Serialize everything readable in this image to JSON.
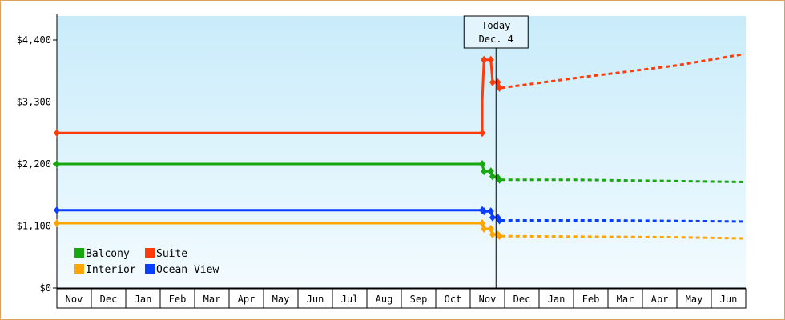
{
  "chart_data": {
    "type": "line",
    "title": "",
    "xlabel": "",
    "ylabel": "",
    "y_ticks": [
      "$0",
      "$1,100",
      "$2,200",
      "$3,300",
      "$4,400"
    ],
    "ylim": [
      0,
      4400
    ],
    "x_tick_labels": [
      "Nov",
      "Dec",
      "Jan",
      "Feb",
      "Mar",
      "Apr",
      "May",
      "Jun",
      "Jul",
      "Aug",
      "Sep",
      "Oct",
      "Nov",
      "Dec",
      "Jan",
      "Feb",
      "Mar",
      "Apr",
      "May",
      "Jun"
    ],
    "today_marker": {
      "label_line1": "Today",
      "label_line2": "Dec. 4",
      "x": 12.75
    },
    "legend": {
      "placement": "bottom-left",
      "entries": [
        {
          "label": "Balcony",
          "color": "#17a80f"
        },
        {
          "label": "Suite",
          "color": "#ff3b0a"
        },
        {
          "label": "Interior",
          "color": "#ffa500"
        },
        {
          "label": "Ocean View",
          "color": "#0a3dff"
        }
      ]
    },
    "background_gradient": [
      "#c9ecfa",
      "#f3fbff"
    ],
    "series": [
      {
        "name": "Suite",
        "color": "#ff3b0a",
        "history": [
          [
            0,
            2750
          ],
          [
            12.35,
            2750
          ],
          [
            12.35,
            3300
          ],
          [
            12.4,
            4050
          ],
          [
            12.6,
            4050
          ],
          [
            12.65,
            3650
          ],
          [
            12.8,
            3650
          ],
          [
            12.85,
            3550
          ]
        ],
        "markers": [
          [
            0,
            2750
          ],
          [
            12.35,
            2750
          ],
          [
            12.4,
            4050
          ],
          [
            12.6,
            4050
          ],
          [
            12.65,
            3650
          ],
          [
            12.8,
            3650
          ],
          [
            12.85,
            3550
          ]
        ],
        "forecast": [
          [
            12.9,
            3550
          ],
          [
            15,
            3720
          ],
          [
            18,
            3950
          ],
          [
            19.95,
            4150
          ]
        ]
      },
      {
        "name": "Balcony",
        "color": "#17a80f",
        "history": [
          [
            0,
            2200
          ],
          [
            12.35,
            2200
          ],
          [
            12.4,
            2070
          ],
          [
            12.6,
            2070
          ],
          [
            12.65,
            1980
          ],
          [
            12.8,
            1960
          ],
          [
            12.85,
            1920
          ]
        ],
        "markers": [
          [
            0,
            2200
          ],
          [
            12.35,
            2200
          ],
          [
            12.4,
            2070
          ],
          [
            12.6,
            2070
          ],
          [
            12.65,
            1980
          ],
          [
            12.8,
            1960
          ],
          [
            12.85,
            1920
          ]
        ],
        "forecast": [
          [
            12.9,
            1920
          ],
          [
            15,
            1920
          ],
          [
            19.95,
            1880
          ]
        ]
      },
      {
        "name": "Ocean View",
        "color": "#0a3dff",
        "history": [
          [
            0,
            1380
          ],
          [
            12.35,
            1380
          ],
          [
            12.4,
            1360
          ],
          [
            12.6,
            1360
          ],
          [
            12.65,
            1250
          ],
          [
            12.8,
            1250
          ],
          [
            12.85,
            1200
          ]
        ],
        "markers": [
          [
            0,
            1380
          ],
          [
            12.35,
            1380
          ],
          [
            12.4,
            1360
          ],
          [
            12.6,
            1360
          ],
          [
            12.65,
            1250
          ],
          [
            12.8,
            1250
          ],
          [
            12.85,
            1200
          ]
        ],
        "forecast": [
          [
            12.9,
            1200
          ],
          [
            16,
            1200
          ],
          [
            19.95,
            1180
          ]
        ]
      },
      {
        "name": "Interior",
        "color": "#ffa500",
        "history": [
          [
            0,
            1150
          ],
          [
            12.35,
            1150
          ],
          [
            12.4,
            1050
          ],
          [
            12.6,
            1050
          ],
          [
            12.65,
            950
          ],
          [
            12.8,
            950
          ],
          [
            12.85,
            920
          ]
        ],
        "markers": [
          [
            0,
            1150
          ],
          [
            12.35,
            1150
          ],
          [
            12.4,
            1050
          ],
          [
            12.6,
            1050
          ],
          [
            12.65,
            950
          ],
          [
            12.8,
            950
          ],
          [
            12.85,
            920
          ]
        ],
        "forecast": [
          [
            12.9,
            920
          ],
          [
            18,
            900
          ],
          [
            19.95,
            880
          ]
        ]
      }
    ]
  }
}
